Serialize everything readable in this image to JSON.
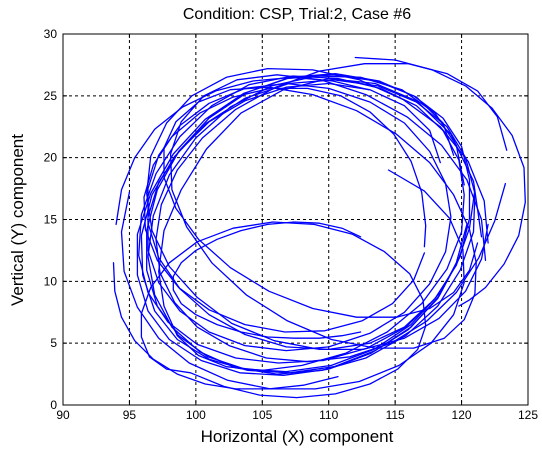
{
  "chart_data": {
    "type": "line",
    "title": "Condition: CSP, Trial:2, Case #6",
    "xlabel": "Horizontal (X) component",
    "ylabel": "Vertical (Y) component",
    "xlim": [
      90,
      125
    ],
    "ylim": [
      0,
      30
    ],
    "xticks": [
      "90",
      "95",
      "100",
      "105",
      "110",
      "115",
      "120",
      "125"
    ],
    "yticks": [
      "0",
      "5",
      "10",
      "15",
      "20",
      "25",
      "30"
    ],
    "grid": true,
    "line_color": "#0000ff",
    "series": [
      {
        "x": [
          121.5,
          120.9,
          119.2,
          116.6,
          113.5,
          110.0,
          106.6,
          103.4,
          100.8,
          98.9,
          97.6,
          97.2,
          97.6,
          98.6,
          100.2,
          102.3,
          105.0,
          108.0,
          111.3,
          114.4,
          117.0,
          118.9,
          120.0,
          120.2,
          119.8,
          118.6,
          116.6,
          113.9,
          110.7,
          107.3,
          104.0,
          101.2,
          98.8,
          97.0,
          95.9,
          95.7,
          96.4,
          97.9,
          100.1,
          103.0,
          106.2,
          109.6,
          112.9,
          115.8,
          118.0,
          119.6,
          120.6,
          121.0
        ],
        "y": [
          13.6,
          18.1,
          21.9,
          24.6,
          26.0,
          26.4,
          25.5,
          23.6,
          20.7,
          17.4,
          14.1,
          10.8,
          8.0,
          5.6,
          4.0,
          3.1,
          2.8,
          3.2,
          4.2,
          5.9,
          8.2,
          11.0,
          14.0,
          17.0,
          19.8,
          22.2,
          24.2,
          25.6,
          26.4,
          26.6,
          25.9,
          24.2,
          21.7,
          18.7,
          15.4,
          12.1,
          9.1,
          6.7,
          4.9,
          3.8,
          3.4,
          3.6,
          4.6,
          6.3,
          8.6,
          11.3,
          14.3,
          17.4
        ]
      },
      {
        "x": [
          119.4,
          118.6,
          116.6,
          113.8,
          110.5,
          107.1,
          103.9,
          101.0,
          98.7,
          97.1,
          96.3,
          96.3,
          97.1,
          98.7,
          100.9,
          103.7,
          106.8,
          110.2,
          113.4,
          116.2,
          118.4,
          119.9,
          120.6,
          120.6,
          120.0,
          118.6,
          116.4,
          113.6,
          110.3,
          106.9,
          103.6,
          100.7,
          98.3,
          96.6,
          95.6,
          95.6,
          96.4,
          98.0,
          100.4,
          103.3,
          106.6,
          110.0,
          113.2,
          116.0,
          118.2,
          119.6,
          120.4
        ],
        "y": [
          20.2,
          22.8,
          24.9,
          26.2,
          26.8,
          26.5,
          25.3,
          23.2,
          20.5,
          17.4,
          14.1,
          10.9,
          8.0,
          5.6,
          3.9,
          2.9,
          2.7,
          3.2,
          4.5,
          6.5,
          9.1,
          12.0,
          15.1,
          18.2,
          20.9,
          23.2,
          25.0,
          26.2,
          26.7,
          26.4,
          25.2,
          23.1,
          20.3,
          17.1,
          13.8,
          10.5,
          7.6,
          5.3,
          3.6,
          2.6,
          2.4,
          2.9,
          4.2,
          6.1,
          8.6,
          11.5,
          14.6
        ]
      },
      {
        "x": [
          120.2,
          119.6,
          118.0,
          115.5,
          112.4,
          109.1,
          105.7,
          102.6,
          100.0,
          98.0,
          96.8,
          96.4,
          96.9,
          98.2,
          100.3,
          103.0,
          106.1,
          109.5,
          112.8,
          115.8,
          118.2,
          119.9,
          120.9,
          121.0,
          120.3,
          118.9,
          116.6,
          113.7,
          110.4,
          107.0,
          103.7,
          100.8,
          98.4,
          96.7,
          95.9,
          96.0,
          96.9,
          98.6,
          101.0,
          103.9,
          107.1,
          110.4,
          113.5,
          116.2,
          118.3,
          119.7
        ],
        "y": [
          17.8,
          21.0,
          23.6,
          25.5,
          26.5,
          26.6,
          25.8,
          24.1,
          21.6,
          18.6,
          15.3,
          12.0,
          8.9,
          6.3,
          4.3,
          3.0,
          2.5,
          2.8,
          3.8,
          5.6,
          8.0,
          10.9,
          14.0,
          17.1,
          20.0,
          22.5,
          24.5,
          25.8,
          26.3,
          26.0,
          24.8,
          22.8,
          20.1,
          17.0,
          13.7,
          10.5,
          7.6,
          5.3,
          3.7,
          2.8,
          2.6,
          3.1,
          4.4,
          6.3,
          8.8,
          11.6
        ]
      },
      {
        "x": [
          118.4,
          117.6,
          115.7,
          113.1,
          110.0,
          106.8,
          103.7,
          101.0,
          98.8,
          97.2,
          96.4,
          96.4,
          97.2,
          98.8,
          101.0,
          103.7,
          106.8,
          110.0,
          113.1,
          115.7,
          117.6,
          118.8,
          119.2,
          118.8,
          117.6,
          115.7,
          113.1,
          110.0,
          106.8,
          103.7,
          101.0,
          98.8,
          97.2,
          96.4,
          96.4,
          97.2,
          98.8,
          101.0,
          103.7,
          106.8,
          110.0,
          113.1,
          115.7,
          117.6
        ],
        "y": [
          19.6,
          22.2,
          24.2,
          25.5,
          26.0,
          25.7,
          24.6,
          22.9,
          20.6,
          18.0,
          15.2,
          12.5,
          9.9,
          7.6,
          5.9,
          4.8,
          4.4,
          4.7,
          5.8,
          7.5,
          9.8,
          12.4,
          15.2,
          17.9,
          20.5,
          22.8,
          24.5,
          25.6,
          26.0,
          25.6,
          24.4,
          22.6,
          20.2,
          17.5,
          14.7,
          11.9,
          9.4,
          7.3,
          5.7,
          4.7,
          4.5,
          5.0,
          6.3,
          8.2
        ]
      },
      {
        "x": [
          121.8,
          121.5,
          120.4,
          118.5,
          115.9,
          112.8,
          109.4,
          106.1,
          103.1,
          100.6,
          98.9,
          98.1,
          98.2,
          99.3,
          101.2,
          103.8,
          106.9,
          110.2,
          113.5,
          116.4,
          118.7,
          120.2,
          121.0,
          121.1,
          120.6,
          119.4,
          117.6,
          115.1,
          112.1,
          108.8,
          105.5,
          102.6,
          100.2,
          98.5,
          97.6,
          97.6,
          98.5,
          100.2,
          102.6,
          105.5,
          108.8,
          112.1,
          115.1,
          117.6,
          119.4,
          120.6,
          121.2
        ],
        "y": [
          11.7,
          15.0,
          18.2,
          21.0,
          23.3,
          25.1,
          26.3,
          26.7,
          26.3,
          25.0,
          22.9,
          20.3,
          17.4,
          14.4,
          11.5,
          8.9,
          6.8,
          5.3,
          4.6,
          4.6,
          5.4,
          6.9,
          9.0,
          11.5,
          14.2,
          17.0,
          19.6,
          21.9,
          23.8,
          25.1,
          25.7,
          25.5,
          24.5,
          22.9,
          20.8,
          18.4,
          15.9,
          13.4,
          11.1,
          9.2,
          7.8,
          7.1,
          7.1,
          7.8,
          9.1,
          10.9,
          13.1
        ]
      },
      {
        "x": [
          123.4,
          122.7,
          121.2,
          118.9,
          116.0,
          112.7,
          109.3,
          106.0,
          103.0,
          100.5,
          98.6,
          97.4,
          97.0,
          97.3,
          98.4,
          100.1,
          102.5,
          105.3,
          108.4,
          111.6,
          114.7,
          117.4,
          119.6,
          121.3,
          122.5,
          123.3
        ],
        "y": [
          20.6,
          23.3,
          25.4,
          26.8,
          27.6,
          27.6,
          27.0,
          25.7,
          23.9,
          21.6,
          19.0,
          16.2,
          13.4,
          10.7,
          8.3,
          6.3,
          4.8,
          3.8,
          3.5,
          3.9,
          5.0,
          6.8,
          9.1,
          11.9,
          14.9,
          17.9
        ]
      },
      {
        "x": [
          122.0,
          121.7,
          120.5,
          118.4,
          115.6,
          112.3,
          108.8,
          105.4,
          102.3,
          99.7,
          97.8,
          96.6,
          96.3,
          96.7,
          98.0,
          100.1,
          102.7,
          105.9,
          109.3,
          112.6,
          115.7,
          118.3,
          120.3,
          121.5,
          122.0
        ],
        "y": [
          13.1,
          16.5,
          19.7,
          22.5,
          24.7,
          26.3,
          27.1,
          27.2,
          26.5,
          25.0,
          22.8,
          20.1,
          17.1,
          14.1,
          11.2,
          8.7,
          6.6,
          5.2,
          4.5,
          4.5,
          5.4,
          7.0,
          9.2,
          11.8,
          14.6
        ]
      },
      {
        "x": [
          117.2,
          117.3,
          117.0,
          116.2,
          114.9,
          113.1,
          110.9,
          108.4,
          105.6,
          102.8,
          100.3,
          98.2,
          96.8,
          96.1,
          96.2,
          97.1,
          98.7,
          101.0,
          103.7,
          106.7,
          109.7,
          112.5,
          114.8,
          116.4,
          117.2
        ],
        "y": [
          12.8,
          14.5,
          17.2,
          19.7,
          21.9,
          23.7,
          25.0,
          25.6,
          25.6,
          24.9,
          23.6,
          21.7,
          19.4,
          16.8,
          14.2,
          11.7,
          9.5,
          7.7,
          6.5,
          5.9,
          6.0,
          6.8,
          8.2,
          10.1,
          12.3
        ]
      },
      {
        "x": [
          112.4,
          111.0,
          109.3,
          107.4,
          105.4,
          103.4,
          101.6,
          100.0,
          98.9,
          98.3,
          98.3,
          98.9,
          100.0,
          101.6,
          103.4,
          105.4,
          107.4,
          109.3,
          111.0,
          112.4
        ],
        "y": [
          5.9,
          5.6,
          5.4,
          5.4,
          5.5,
          5.9,
          6.5,
          7.3,
          8.2,
          9.3,
          10.4,
          11.5,
          12.5,
          13.4,
          14.1,
          14.6,
          14.8,
          14.7,
          14.3,
          13.6
        ]
      },
      {
        "x": [
          99.6,
          102.1,
          104.8,
          107.6,
          110.5,
          113.1,
          115.2,
          116.7,
          117.3,
          117.1,
          116.1,
          114.2,
          111.8,
          108.9,
          105.8,
          102.8,
          100.1,
          98.0,
          96.6,
          95.9,
          95.9,
          96.5,
          97.8,
          99.6
        ],
        "y": [
          2.6,
          1.5,
          0.8,
          0.6,
          0.9,
          1.7,
          2.9,
          4.5,
          6.4,
          8.5,
          10.6,
          12.4,
          13.8,
          14.6,
          14.8,
          14.3,
          13.2,
          11.5,
          9.5,
          7.4,
          5.5,
          3.9,
          2.9,
          2.6
        ]
      },
      {
        "x": [
          95.0,
          94.4,
          94.6,
          95.6,
          97.2,
          99.5,
          102.4,
          105.6,
          109.0,
          112.3,
          115.3,
          117.7,
          119.4,
          120.2,
          120.1,
          119.1,
          117.2,
          114.5
        ],
        "y": [
          17.2,
          14.0,
          10.8,
          7.9,
          5.4,
          3.4,
          2.0,
          1.3,
          1.3,
          1.9,
          3.2,
          5.0,
          7.3,
          9.9,
          12.6,
          15.1,
          17.3,
          19.0
        ]
      },
      {
        "x": [
          93.8,
          93.9,
          94.4,
          95.4,
          96.8,
          98.6,
          100.7,
          103.0,
          105.5,
          108.1,
          110.7
        ],
        "y": [
          11.5,
          9.2,
          7.1,
          5.2,
          3.7,
          2.5,
          1.7,
          1.3,
          1.3,
          1.6,
          2.3
        ]
      },
      {
        "x": [
          94.0,
          94.4,
          95.4,
          96.9,
          99.0,
          101.5,
          104.3,
          107.3,
          110.3,
          113.0
        ],
        "y": [
          14.6,
          17.4,
          20.0,
          22.3,
          24.1,
          25.4,
          26.2,
          26.5,
          26.2,
          25.5
        ]
      },
      {
        "x": [
          112.0,
          115.0,
          117.8,
          120.3,
          122.3,
          123.8,
          124.7,
          124.8,
          124.3,
          123.2,
          121.8,
          120.6,
          119.8
        ],
        "y": [
          28.1,
          27.9,
          27.1,
          25.8,
          24.0,
          21.8,
          19.2,
          16.4,
          13.7,
          11.4,
          9.5,
          8.5,
          8.0
        ]
      }
    ]
  }
}
